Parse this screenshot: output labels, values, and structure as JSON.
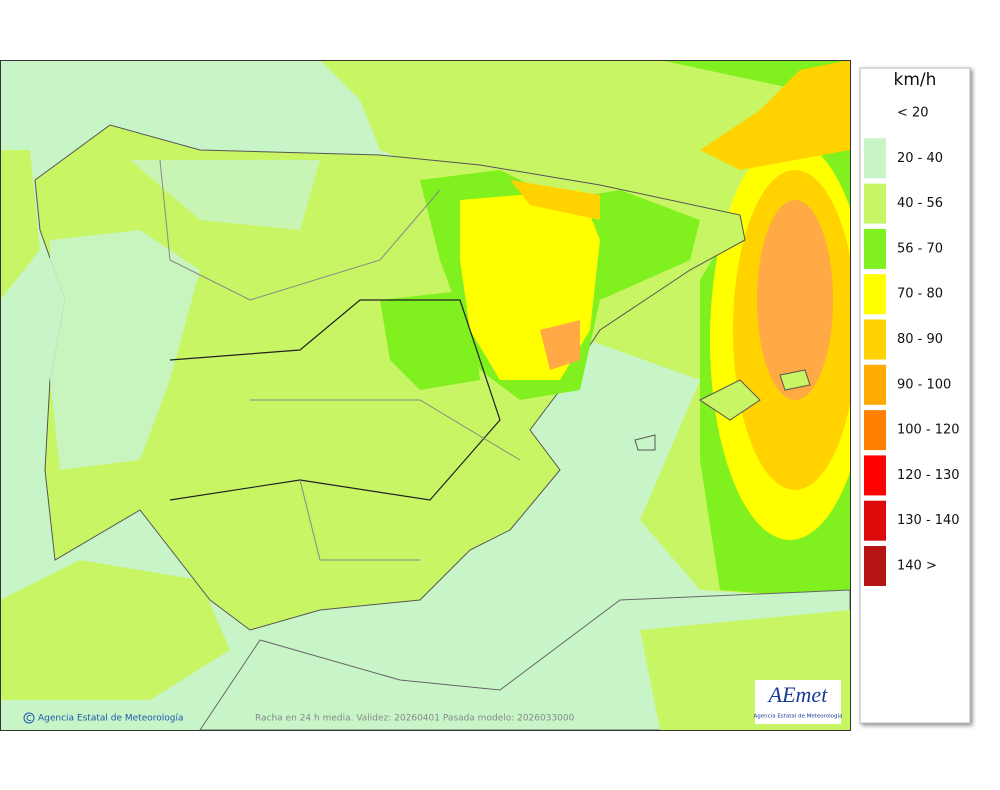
{
  "legend": {
    "unit": "km/h",
    "items": [
      {
        "label": "< 20"
      },
      {
        "label": "20 - 40",
        "color": "#c8f5c8"
      },
      {
        "label": "40 - 56",
        "color": "#c8f564"
      },
      {
        "label": "56 - 70",
        "color": "#80f01e"
      },
      {
        "label": "70 - 80",
        "color": "#ffff00"
      },
      {
        "label": "80 - 90",
        "color": "#ffd200"
      },
      {
        "label": "90 - 100",
        "color": "#ffaa00"
      },
      {
        "label": "100 - 120",
        "color": "#ff8000"
      },
      {
        "label": "120 - 130",
        "color": "#ff0000"
      },
      {
        "label": "130 - 140",
        "color": "#dc0a0a"
      },
      {
        "label": "140 >",
        "color": "#b41414"
      }
    ]
  },
  "footer": {
    "credit": "Agencia Estatal de Meteorología",
    "caption": "Racha en 24 h media. Validez: 20260401 Pasada modelo: 2026033000"
  },
  "logo": {
    "name": "AEmet",
    "subtitle": "Agencia Estatal de Meteorología"
  }
}
